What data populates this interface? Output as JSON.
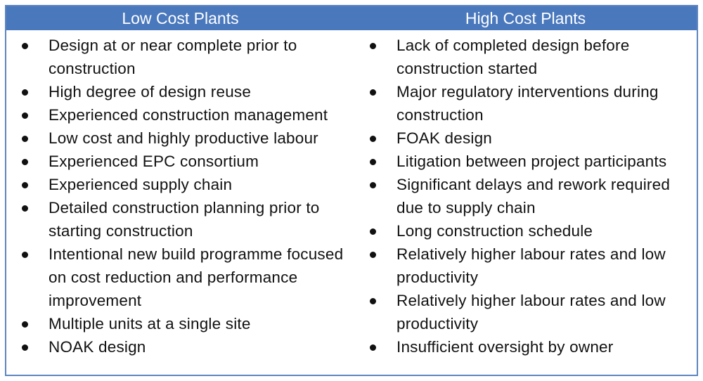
{
  "header": {
    "left_title": "Low Cost Plants",
    "right_title": "High Cost Plants"
  },
  "colors": {
    "header_bg": "#4a78bd",
    "border": "#5f85c1",
    "header_text": "#ffffff",
    "body_text": "#111111"
  },
  "low_cost": {
    "items": [
      "Design at or near complete prior to construction",
      "High degree of design reuse",
      "Experienced construction management",
      "Low cost and highly productive labour",
      "Experienced EPC consortium",
      "Experienced supply chain",
      "Detailed construction planning prior to starting construction",
      "Intentional new build programme focused on cost reduction and performance improvement",
      "Multiple units at a single site",
      "NOAK design"
    ]
  },
  "high_cost": {
    "items": [
      "Lack of completed design before construction started",
      "Major regulatory interventions during construction",
      "FOAK design",
      "Litigation between project participants",
      "Significant delays and rework required due to supply chain",
      "Long construction schedule",
      "Relatively higher labour rates and low productivity",
      "Relatively higher labour rates and low productivity",
      "Insufficient oversight by owner"
    ]
  }
}
